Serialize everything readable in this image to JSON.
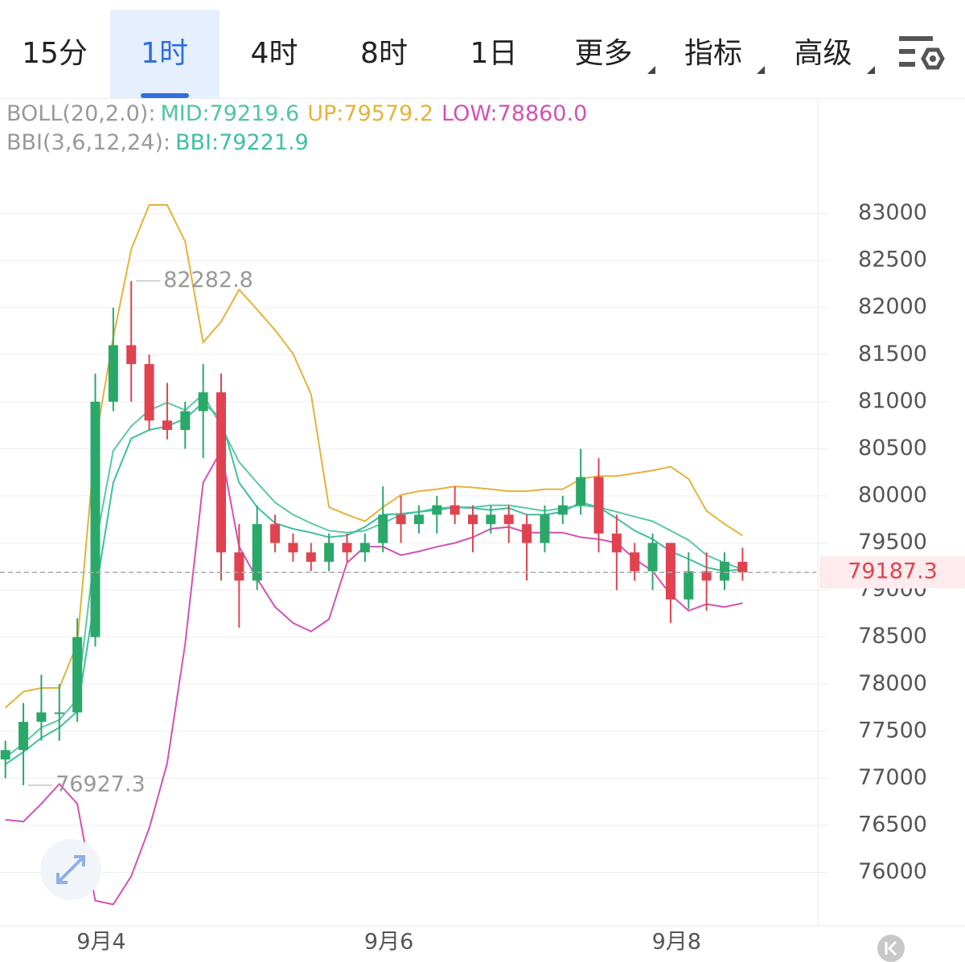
{
  "tabs": [
    {
      "label": "15分"
    },
    {
      "label": "1时"
    },
    {
      "label": "4时"
    },
    {
      "label": "8时"
    },
    {
      "label": "1日"
    },
    {
      "label": "更多",
      "menu": true
    },
    {
      "label": "指标",
      "menu": true
    },
    {
      "label": "高级",
      "menu": true
    }
  ],
  "selected_tab": 1,
  "indicators": [
    {
      "name": "BOLL(20,2.0):",
      "items": [
        {
          "text": "MID:79219.6",
          "color": "#4fc4a2"
        },
        {
          "text": "UP:79579.2",
          "color": "#e6b23a"
        },
        {
          "text": "LOW:78860.0",
          "color": "#d251b6"
        }
      ]
    },
    {
      "name": "BBI(3,6,12,24):",
      "items": [
        {
          "text": "BBI:79221.9",
          "color": "#3fbea3"
        }
      ]
    }
  ],
  "chart_data": {
    "type": "candlestick",
    "up_color": "#2aa86a",
    "down_color": "#e0434f",
    "candles": {
      "open": [
        77200,
        77300,
        77600,
        77700,
        77700,
        78500,
        81000,
        81600,
        81400,
        80800,
        80700,
        80900,
        81100,
        79400,
        79100,
        79700,
        79500,
        79400,
        79300,
        79500,
        79400,
        79500,
        79800,
        79700,
        79800,
        79900,
        79800,
        79700,
        79800,
        79700,
        79500,
        79800,
        79900,
        80200,
        79600,
        79400,
        79200,
        79500,
        78900,
        79200,
        79100,
        79300
      ],
      "high": [
        77400,
        77800,
        78100,
        78000,
        78700,
        81300,
        82000,
        82282.8,
        81500,
        81200,
        81000,
        81400,
        81300,
        79700,
        79900,
        79800,
        79600,
        79500,
        79600,
        79600,
        79600,
        80100,
        80000,
        79900,
        80000,
        80100,
        79900,
        79900,
        79900,
        79800,
        79900,
        80000,
        80500,
        80400,
        79800,
        79500,
        79600,
        79500,
        79400,
        79400,
        79400,
        79450
      ],
      "low": [
        77000,
        76927.3,
        77400,
        77400,
        77600,
        78400,
        80900,
        81000,
        80700,
        80600,
        80500,
        80400,
        79100,
        78600,
        79000,
        79400,
        79300,
        79200,
        79200,
        79300,
        79300,
        79400,
        79500,
        79600,
        79600,
        79700,
        79400,
        79600,
        79500,
        79100,
        79400,
        79700,
        79800,
        79400,
        79000,
        79100,
        79000,
        78650,
        78800,
        78780,
        79000,
        79100
      ],
      "close": [
        77300,
        77600,
        77700,
        77700,
        78500,
        81000,
        81600,
        81400,
        80800,
        80700,
        80900,
        81100,
        79400,
        79100,
        79700,
        79500,
        79400,
        79300,
        79500,
        79400,
        79500,
        79800,
        79700,
        79800,
        79900,
        79800,
        79700,
        79800,
        79700,
        79500,
        79800,
        79900,
        80200,
        79600,
        79400,
        79200,
        79500,
        78900,
        79200,
        79100,
        79300,
        79187.3
      ]
    },
    "series": [
      {
        "name": "UP",
        "color": "#e6b23a",
        "values": [
          77750,
          77920,
          77960,
          77960,
          78430,
          80570,
          81680,
          82620,
          83090,
          83090,
          82700,
          81630,
          81850,
          82190,
          81980,
          81760,
          81510,
          81080,
          79880,
          79800,
          79730,
          79880,
          80010,
          80050,
          80070,
          80100,
          80090,
          80070,
          80050,
          80050,
          80070,
          80070,
          80180,
          80210,
          80210,
          80240,
          80270,
          80310,
          80180,
          79840,
          79700,
          79579.2
        ]
      },
      {
        "name": "MID",
        "color": "#5cc8a8",
        "values": [
          77220,
          77370,
          77540,
          77620,
          77840,
          79460,
          80480,
          80740,
          80910,
          80990,
          80910,
          81080,
          80740,
          80360,
          80140,
          79930,
          79800,
          79710,
          79630,
          79610,
          79630,
          79710,
          79800,
          79830,
          79870,
          79880,
          79880,
          79900,
          79900,
          79870,
          79840,
          79870,
          79900,
          79880,
          79830,
          79780,
          79730,
          79630,
          79530,
          79370,
          79290,
          79219.6
        ]
      },
      {
        "name": "LOW",
        "color": "#d251b6",
        "values": [
          76560,
          76540,
          76730,
          76940,
          76730,
          75700,
          75660,
          75960,
          76470,
          77160,
          78430,
          80140,
          80480,
          79460,
          79120,
          78820,
          78650,
          78560,
          78690,
          79290,
          79460,
          79460,
          79370,
          79410,
          79460,
          79500,
          79560,
          79650,
          79670,
          79610,
          79610,
          79610,
          79560,
          79540,
          79500,
          79330,
          79200,
          78950,
          78780,
          78850,
          78820,
          78860
        ]
      },
      {
        "name": "BBI",
        "color": "#3fbea3",
        "values": [
          77150,
          77280,
          77430,
          77540,
          77710,
          78950,
          80140,
          80610,
          80700,
          80740,
          80820,
          80990,
          80820,
          80140,
          79880,
          79710,
          79650,
          79610,
          79560,
          79580,
          79670,
          79800,
          79810,
          79830,
          79850,
          79880,
          79870,
          79850,
          79870,
          79800,
          79800,
          79830,
          79930,
          79880,
          79760,
          79630,
          79540,
          79410,
          79330,
          79240,
          79200,
          79221.9
        ]
      }
    ],
    "xlim": [
      -0.3,
      45.1
    ],
    "xticks": [
      {
        "value": 5.33,
        "label": "9月4"
      },
      {
        "value": 21.33,
        "label": "9月6"
      },
      {
        "value": 37.33,
        "label": "9月8"
      }
    ],
    "ylim": [
      75450,
      84200
    ],
    "yticks": [
      76000,
      76500,
      77000,
      77500,
      78000,
      78500,
      79000,
      79500,
      80000,
      80500,
      81000,
      81500,
      82000,
      82500,
      83000
    ],
    "grid": true
  }
}
